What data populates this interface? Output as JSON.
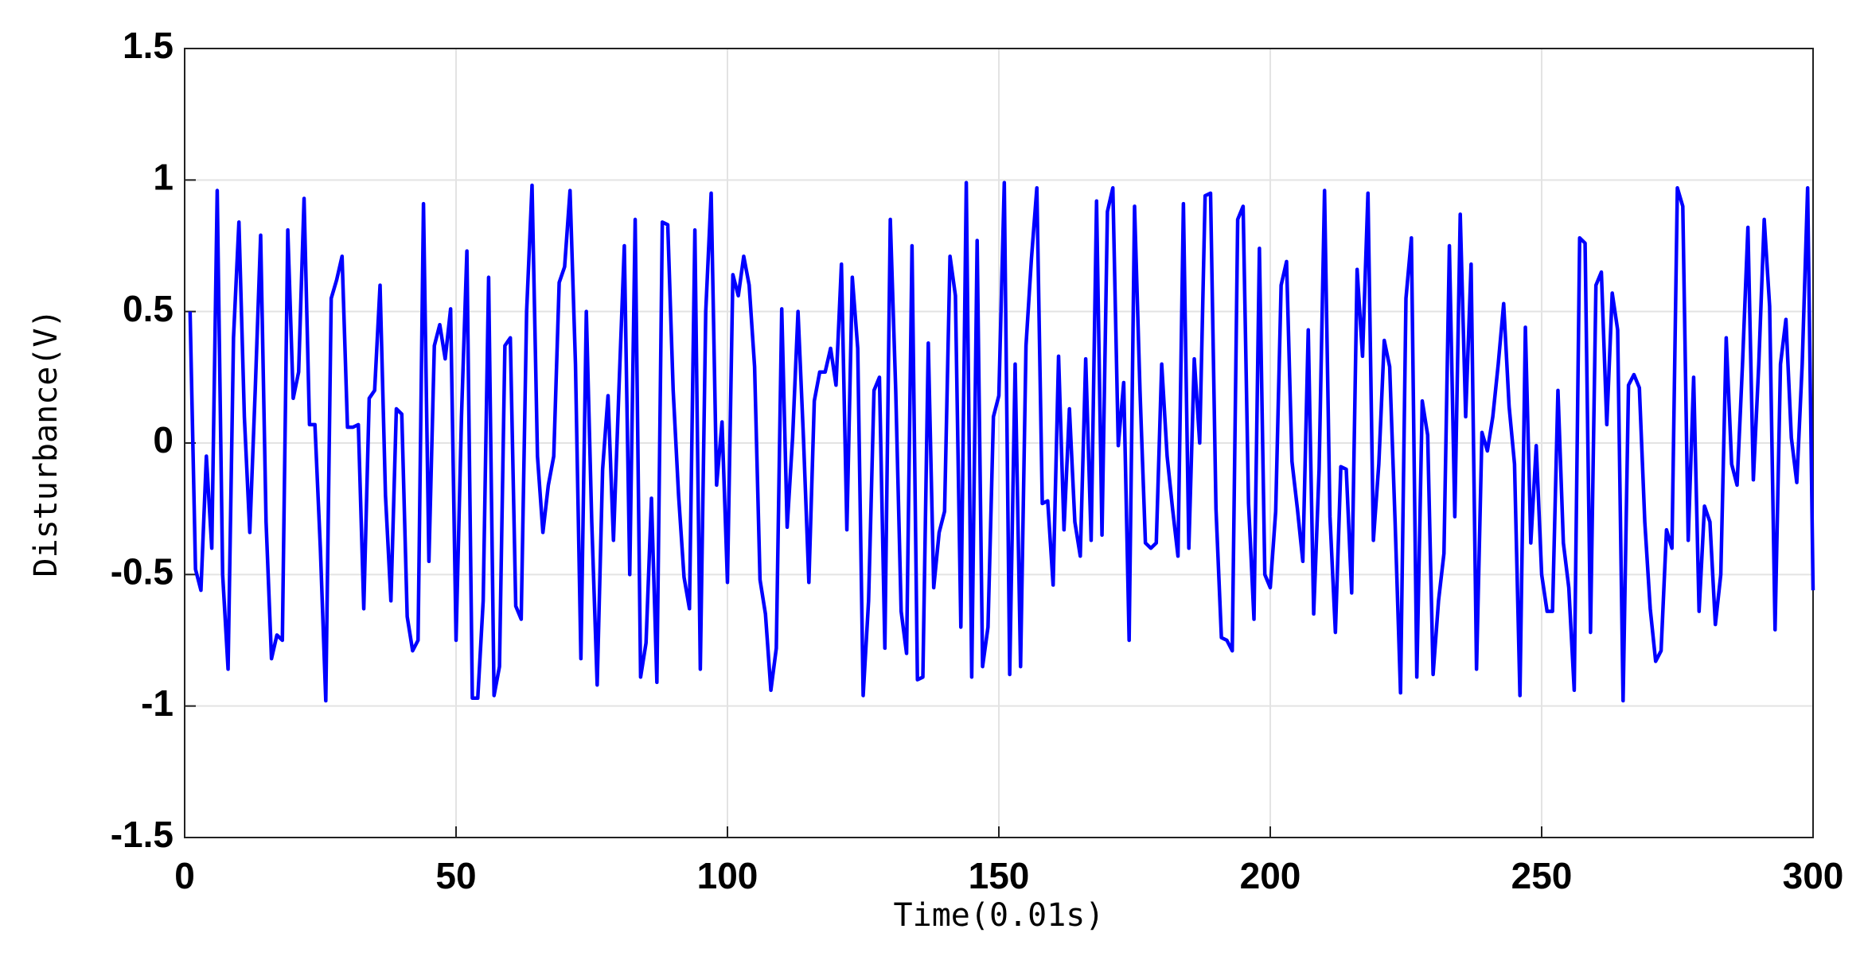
{
  "chart_data": {
    "type": "line",
    "xlabel": "Time(0.01s)",
    "ylabel": "Disturbance(V)",
    "color": "#0000ff",
    "grid": true,
    "xlim": [
      0,
      300
    ],
    "xticks": [
      0,
      50,
      100,
      150,
      200,
      250,
      300
    ],
    "ylim": [
      -1.5,
      1.5
    ],
    "yticks": [
      -1.5,
      -1,
      -0.5,
      0,
      0.5,
      1,
      1.5
    ],
    "x": [
      1,
      2,
      3,
      4,
      5,
      6,
      7,
      8,
      9,
      10,
      11,
      12,
      13,
      14,
      15,
      16,
      17,
      18,
      19,
      20,
      21,
      22,
      23,
      24,
      25,
      26,
      27,
      28,
      29,
      30,
      31,
      32,
      33,
      34,
      35,
      36,
      37,
      38,
      39,
      40,
      41,
      42,
      43,
      44,
      45,
      46,
      47,
      48,
      49,
      50,
      51,
      52,
      53,
      54,
      55,
      56,
      57,
      58,
      59,
      60,
      61,
      62,
      63,
      64,
      65,
      66,
      67,
      68,
      69,
      70,
      71,
      72,
      73,
      74,
      75,
      76,
      77,
      78,
      79,
      80,
      81,
      82,
      83,
      84,
      85,
      86,
      87,
      88,
      89,
      90,
      91,
      92,
      93,
      94,
      95,
      96,
      97,
      98,
      99,
      100,
      101,
      102,
      103,
      104,
      105,
      106,
      107,
      108,
      109,
      110,
      111,
      112,
      113,
      114,
      115,
      116,
      117,
      118,
      119,
      120,
      121,
      122,
      123,
      124,
      125,
      126,
      127,
      128,
      129,
      130,
      131,
      132,
      133,
      134,
      135,
      136,
      137,
      138,
      139,
      140,
      141,
      142,
      143,
      144,
      145,
      146,
      147,
      148,
      149,
      150,
      151,
      152,
      153,
      154,
      155,
      156,
      157,
      158,
      159,
      160,
      161,
      162,
      163,
      164,
      165,
      166,
      167,
      168,
      169,
      170,
      171,
      172,
      173,
      174,
      175,
      176,
      177,
      178,
      179,
      180,
      181,
      182,
      183,
      184,
      185,
      186,
      187,
      188,
      189,
      190,
      191,
      192,
      193,
      194,
      195,
      196,
      197,
      198,
      199,
      200,
      201,
      202,
      203,
      204,
      205,
      206,
      207,
      208,
      209,
      210,
      211,
      212,
      213,
      214,
      215,
      216,
      217,
      218,
      219,
      220,
      221,
      222,
      223,
      224,
      225,
      226,
      227,
      228,
      229,
      230,
      231,
      232,
      233,
      234,
      235,
      236,
      237,
      238,
      239,
      240,
      241,
      242,
      243,
      244,
      245,
      246,
      247,
      248,
      249,
      250,
      251,
      252,
      253,
      254,
      255,
      256,
      257,
      258,
      259,
      260,
      261,
      262,
      263,
      264,
      265,
      266,
      267,
      268,
      269,
      270,
      271,
      272,
      273,
      274,
      275,
      276,
      277,
      278,
      279,
      280,
      281,
      282,
      283,
      284,
      285,
      286,
      287,
      288,
      289,
      290,
      291,
      292,
      293,
      294,
      295,
      296,
      297,
      298,
      299,
      300
    ],
    "values": [
      0.5,
      -0.48,
      -0.56,
      -0.05,
      -0.4,
      0.96,
      -0.5,
      -0.86,
      0.4,
      0.84,
      0.1,
      -0.34,
      0.2,
      0.79,
      -0.3,
      -0.82,
      -0.73,
      -0.75,
      0.81,
      0.17,
      0.27,
      0.93,
      0.07,
      0.07,
      -0.4,
      -0.98,
      0.55,
      0.62,
      0.71,
      0.06,
      0.06,
      0.07,
      -0.63,
      0.17,
      0.2,
      0.6,
      -0.2,
      -0.6,
      0.13,
      0.11,
      -0.66,
      -0.79,
      -0.75,
      0.91,
      -0.45,
      0.37,
      0.45,
      0.32,
      0.51,
      -0.75,
      0.1,
      0.73,
      -0.97,
      -0.97,
      -0.6,
      0.63,
      -0.96,
      -0.85,
      0.37,
      0.4,
      -0.62,
      -0.67,
      0.5,
      0.98,
      -0.05,
      -0.34,
      -0.16,
      -0.05,
      0.61,
      0.67,
      0.96,
      0.3,
      -0.82,
      0.5,
      -0.3,
      -0.92,
      -0.1,
      0.18,
      -0.37,
      0.2,
      0.75,
      -0.5,
      0.85,
      -0.89,
      -0.76,
      -0.21,
      -0.91,
      0.84,
      0.83,
      0.2,
      -0.2,
      -0.51,
      -0.63,
      0.81,
      -0.86,
      0.5,
      0.95,
      -0.16,
      0.08,
      -0.53,
      0.64,
      0.56,
      0.71,
      0.6,
      0.29,
      -0.52,
      -0.65,
      -0.94,
      -0.78,
      0.51,
      -0.32,
      0.02,
      0.5,
      0.02,
      -0.53,
      0.16,
      0.27,
      0.27,
      0.36,
      0.22,
      0.68,
      -0.33,
      0.63,
      0.36,
      -0.96,
      -0.6,
      0.2,
      0.25,
      -0.78,
      0.85,
      0.2,
      -0.64,
      -0.8,
      0.75,
      -0.9,
      -0.89,
      0.38,
      -0.55,
      -0.34,
      -0.26,
      0.71,
      0.56,
      -0.7,
      0.99,
      -0.89,
      0.77,
      -0.85,
      -0.7,
      0.1,
      0.18,
      0.99,
      -0.88,
      0.3,
      -0.85,
      0.37,
      0.7,
      0.97,
      -0.23,
      -0.22,
      -0.54,
      0.33,
      -0.33,
      0.13,
      -0.3,
      -0.43,
      0.32,
      -0.37,
      0.92,
      -0.35,
      0.88,
      0.97,
      -0.01,
      0.23,
      -0.75,
      0.9,
      0.2,
      -0.38,
      -0.4,
      -0.38,
      0.3,
      -0.05,
      -0.25,
      -0.43,
      0.91,
      -0.4,
      0.32,
      0,
      0.94,
      0.95,
      -0.25,
      -0.74,
      -0.75,
      -0.79,
      0.85,
      0.9,
      -0.23,
      -0.67,
      0.74,
      -0.5,
      -0.55,
      -0.26,
      0.6,
      0.69,
      -0.07,
      -0.25,
      -0.45,
      0.43,
      -0.65,
      -0.1,
      0.96,
      -0.28,
      -0.72,
      -0.09,
      -0.1,
      -0.57,
      0.66,
      0.33,
      0.95,
      -0.37,
      -0.08,
      0.39,
      0.29,
      -0.3,
      -0.95,
      0.55,
      0.78,
      -0.89,
      0.16,
      0.03,
      -0.88,
      -0.6,
      -0.42,
      0.75,
      -0.28,
      0.87,
      0.1,
      0.68,
      -0.86,
      0.04,
      -0.03,
      0.1,
      0.3,
      0.53,
      0.14,
      -0.08,
      -0.96,
      0.44,
      -0.38,
      -0.01,
      -0.5,
      -0.64,
      -0.64,
      0.2,
      -0.38,
      -0.55,
      -0.94,
      0.78,
      0.76,
      -0.72,
      0.6,
      0.65,
      0.07,
      0.57,
      0.43,
      -0.98,
      0.22,
      0.26,
      0.21,
      -0.3,
      -0.63,
      -0.83,
      -0.79,
      -0.33,
      -0.4,
      0.97,
      0.9,
      -0.37,
      0.25,
      -0.64,
      -0.24,
      -0.3,
      -0.69,
      -0.5,
      0.4,
      -0.08,
      -0.16,
      0.3,
      0.82,
      -0.14,
      0.3,
      0.85,
      0.52,
      -0.71,
      0.3,
      0.47,
      0.02,
      -0.15,
      0.3,
      0.97,
      -0.56
    ]
  }
}
